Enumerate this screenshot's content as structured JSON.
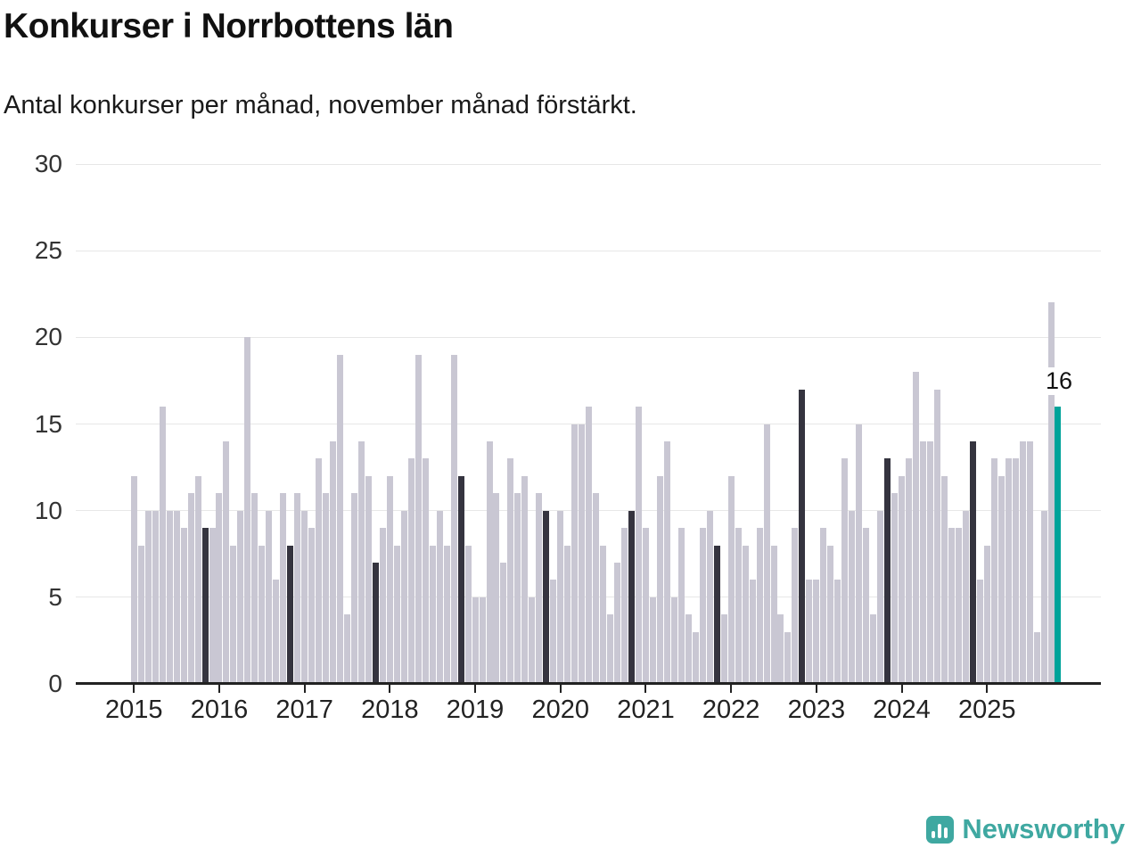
{
  "header": {
    "title": "Konkurser i Norrbottens län",
    "subtitle": "Antal konkurser per månad, november månad förstärkt."
  },
  "chart_data": {
    "type": "bar",
    "title": "Konkurser i Norrbottens län",
    "subtitle": "Antal konkurser per månad, november månad förstärkt.",
    "xlabel": "",
    "ylabel": "",
    "ylim": [
      0,
      30
    ],
    "grid": true,
    "legend_position": "none",
    "yticks": [
      0,
      5,
      10,
      15,
      20,
      25,
      30
    ],
    "x_unit": "month",
    "highlight_month_index": 10,
    "years": [
      {
        "year": 2015,
        "values": [
          12,
          8,
          10,
          10,
          16,
          10,
          10,
          9,
          11,
          12,
          9,
          9
        ]
      },
      {
        "year": 2016,
        "values": [
          11,
          14,
          8,
          10,
          20,
          11,
          8,
          10,
          6,
          11,
          8,
          11
        ]
      },
      {
        "year": 2017,
        "values": [
          10,
          9,
          13,
          11,
          14,
          19,
          4,
          11,
          14,
          12,
          7,
          9
        ]
      },
      {
        "year": 2018,
        "values": [
          12,
          8,
          10,
          13,
          19,
          13,
          8,
          10,
          8,
          19,
          12,
          8
        ]
      },
      {
        "year": 2019,
        "values": [
          5,
          5,
          14,
          11,
          7,
          13,
          11,
          12,
          5,
          11,
          10,
          6
        ]
      },
      {
        "year": 2020,
        "values": [
          10,
          8,
          15,
          15,
          16,
          11,
          8,
          4,
          7,
          9,
          10,
          16
        ]
      },
      {
        "year": 2021,
        "values": [
          9,
          5,
          12,
          14,
          5,
          9,
          4,
          3,
          9,
          10,
          8,
          4
        ]
      },
      {
        "year": 2022,
        "values": [
          12,
          9,
          8,
          6,
          9,
          15,
          8,
          4,
          3,
          9,
          17,
          6
        ]
      },
      {
        "year": 2023,
        "values": [
          6,
          9,
          8,
          6,
          13,
          10,
          15,
          9,
          4,
          10,
          13,
          11
        ]
      },
      {
        "year": 2024,
        "values": [
          12,
          13,
          18,
          14,
          14,
          17,
          12,
          9,
          9,
          10,
          14,
          6
        ]
      },
      {
        "year": 2025,
        "values": [
          8,
          13,
          12,
          13,
          13,
          14,
          14,
          3,
          10,
          22,
          16
        ]
      }
    ],
    "current_bar": {
      "year": 2025,
      "month_index": 10,
      "value": 16,
      "label": "16"
    },
    "colors": {
      "bar": "#c9c7d3",
      "november": "#35343f",
      "current": "#00a39a",
      "grid": "#e7e7e7",
      "axis": "#222222"
    }
  },
  "footer": {
    "logo_text": "Newsworthy",
    "logo_color": "#3fa8a1"
  }
}
